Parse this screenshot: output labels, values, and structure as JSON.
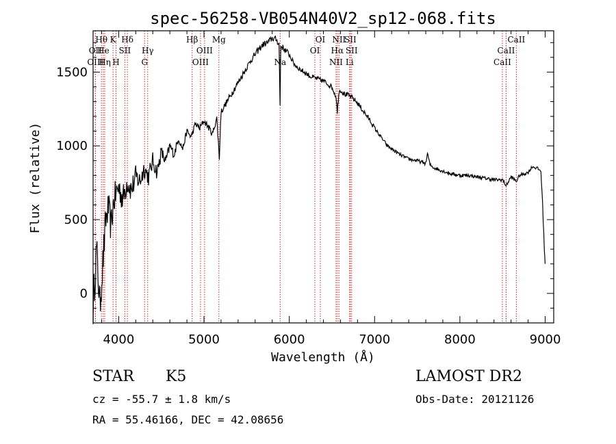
{
  "chart_data": {
    "type": "line",
    "title": "spec-56258-VB054N40V2_sp12-068.fits",
    "xlabel": "Wavelength (Å)",
    "ylabel": "Flux (relative)",
    "xlim": [
      3700,
      9100
    ],
    "ylim": [
      -200,
      1780
    ],
    "xticks": [
      4000,
      5000,
      6000,
      7000,
      8000,
      9000
    ],
    "yticks": [
      0,
      500,
      1000,
      1500
    ],
    "grid": false,
    "series": [
      {
        "name": "flux",
        "x": [
          3700,
          3740,
          3780,
          3820,
          3850,
          3880,
          3910,
          3940,
          3970,
          4000,
          4050,
          4100,
          4150,
          4200,
          4250,
          4300,
          4350,
          4400,
          4450,
          4500,
          4550,
          4600,
          4650,
          4700,
          4750,
          4800,
          4850,
          4900,
          4950,
          5000,
          5050,
          5100,
          5150,
          5180,
          5200,
          5250,
          5300,
          5350,
          5400,
          5450,
          5500,
          5550,
          5600,
          5650,
          5700,
          5750,
          5800,
          5850,
          5880,
          5892,
          5900,
          5950,
          6000,
          6050,
          6100,
          6150,
          6200,
          6250,
          6300,
          6350,
          6400,
          6450,
          6500,
          6550,
          6563,
          6580,
          6600,
          6650,
          6700,
          6750,
          6800,
          6850,
          6900,
          6950,
          7000,
          7050,
          7100,
          7150,
          7200,
          7300,
          7400,
          7500,
          7600,
          7620,
          7650,
          7700,
          7800,
          7900,
          8000,
          8100,
          8200,
          8300,
          8400,
          8500,
          8542,
          8600,
          8662,
          8700,
          8800,
          8850,
          8900,
          8950,
          8970,
          8990,
          9000
        ],
        "y": [
          -100,
          300,
          -80,
          250,
          500,
          580,
          450,
          620,
          680,
          720,
          640,
          760,
          700,
          790,
          760,
          850,
          790,
          900,
          820,
          960,
          890,
          1000,
          940,
          1050,
          980,
          1100,
          1060,
          1150,
          1120,
          1170,
          1130,
          1080,
          1190,
          920,
          1230,
          1280,
          1330,
          1380,
          1430,
          1480,
          1530,
          1580,
          1620,
          1660,
          1690,
          1700,
          1730,
          1720,
          1690,
          1280,
          1680,
          1650,
          1620,
          1560,
          1530,
          1510,
          1490,
          1470,
          1460,
          1450,
          1440,
          1420,
          1400,
          1330,
          1220,
          1360,
          1380,
          1350,
          1340,
          1320,
          1290,
          1250,
          1210,
          1170,
          1120,
          1080,
          1040,
          1000,
          980,
          940,
          910,
          900,
          880,
          950,
          870,
          850,
          830,
          810,
          800,
          800,
          790,
          780,
          770,
          770,
          730,
          790,
          760,
          800,
          820,
          860,
          850,
          830,
          600,
          300,
          200
        ]
      }
    ],
    "lines": [
      {
        "label": "Hθ",
        "x": 3798,
        "row": 0,
        "type": "emission"
      },
      {
        "label": "OII",
        "x": 3727,
        "row": 1,
        "type": "emission"
      },
      {
        "label": "OIII",
        "x": 3727,
        "row": 2,
        "type": "emission"
      },
      {
        "label": "He",
        "x": 3820,
        "row": 1,
        "type": "emission"
      },
      {
        "label": "Hη",
        "x": 3836,
        "row": 2,
        "type": "emission"
      },
      {
        "label": "K",
        "x": 3934,
        "row": 0,
        "type": "absorption"
      },
      {
        "label": "SII",
        "x": 4072,
        "row": 1,
        "type": "emission"
      },
      {
        "label": "H",
        "x": 3969,
        "row": 2,
        "type": "absorption"
      },
      {
        "label": "Hδ",
        "x": 4102,
        "row": 0,
        "type": "emission"
      },
      {
        "label": "Hγ",
        "x": 4340,
        "row": 1,
        "type": "emission"
      },
      {
        "label": "G",
        "x": 4304,
        "row": 2,
        "type": "absorption"
      },
      {
        "label": "Hβ",
        "x": 4861,
        "row": 0,
        "type": "emission"
      },
      {
        "label": "OIII",
        "x": 5007,
        "row": 1,
        "type": "emission"
      },
      {
        "label": "OIII",
        "x": 4959,
        "row": 2,
        "type": "emission"
      },
      {
        "label": "Mg",
        "x": 5175,
        "row": 0,
        "type": "absorption"
      },
      {
        "label": "Na",
        "x": 5893,
        "row": 2,
        "type": "absorption"
      },
      {
        "label": "OI",
        "x": 6364,
        "row": 0,
        "type": "emission"
      },
      {
        "label": "OI",
        "x": 6300,
        "row": 1,
        "type": "emission"
      },
      {
        "label": "NII",
        "x": 6583,
        "row": 0,
        "type": "emission"
      },
      {
        "label": "SII",
        "x": 6716,
        "row": 0,
        "type": "emission"
      },
      {
        "label": "Hα",
        "x": 6563,
        "row": 1,
        "type": "emission"
      },
      {
        "label": "SII",
        "x": 6731,
        "row": 1,
        "type": "emission"
      },
      {
        "label": "NII",
        "x": 6548,
        "row": 2,
        "type": "emission"
      },
      {
        "label": "Li",
        "x": 6707,
        "row": 2,
        "type": "absorption"
      },
      {
        "label": "CaII",
        "x": 8662,
        "row": 0,
        "type": "absorption"
      },
      {
        "label": "CaII",
        "x": 8542,
        "row": 1,
        "type": "absorption"
      },
      {
        "label": "CaII",
        "x": 8498,
        "row": 2,
        "type": "absorption"
      }
    ]
  },
  "info": {
    "class_label": "STAR",
    "subclass": "K5",
    "cz": "cz = -55.7 ± 1.8 km/s",
    "coords": "RA =  55.46166, DEC =  42.08656",
    "survey": "LAMOST DR2",
    "obs_date": "Obs-Date: 20121126"
  },
  "colors": {
    "spectrum": "#000000",
    "marker_line": "#cc2222",
    "axis": "#000000"
  }
}
